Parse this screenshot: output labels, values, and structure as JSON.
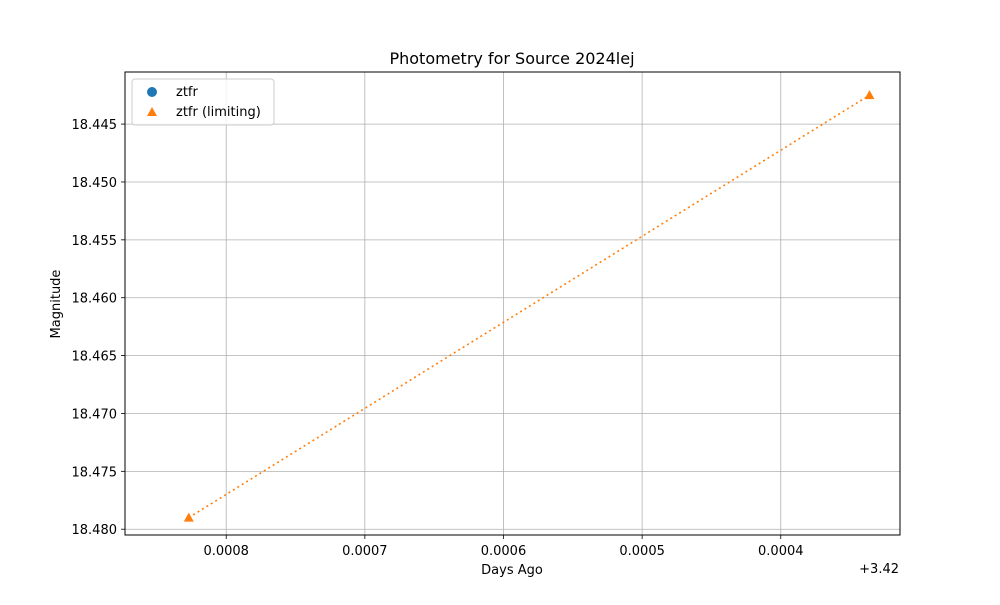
{
  "chart_data": {
    "type": "scatter",
    "title": "Photometry for Source 2024lej",
    "xlabel": "Days Ago",
    "ylabel": "Magnitude",
    "x_offset_label": "+3.42",
    "x_inverted": true,
    "y_inverted": true,
    "grid": true,
    "legend_position": "top-left",
    "xlim": [
      3.420873,
      3.420314
    ],
    "ylim": [
      18.4805,
      18.4405
    ],
    "x_ticks": [
      {
        "value": 3.4208,
        "label": "0.0008"
      },
      {
        "value": 3.4207,
        "label": "0.0007"
      },
      {
        "value": 3.4206,
        "label": "0.0006"
      },
      {
        "value": 3.4205,
        "label": "0.0005"
      },
      {
        "value": 3.4204,
        "label": "0.0004"
      }
    ],
    "y_ticks": [
      {
        "value": 18.445,
        "label": "18.445"
      },
      {
        "value": 18.45,
        "label": "18.450"
      },
      {
        "value": 18.455,
        "label": "18.455"
      },
      {
        "value": 18.46,
        "label": "18.460"
      },
      {
        "value": 18.465,
        "label": "18.465"
      },
      {
        "value": 18.47,
        "label": "18.470"
      },
      {
        "value": 18.475,
        "label": "18.475"
      },
      {
        "value": 18.48,
        "label": "18.480"
      }
    ],
    "series": [
      {
        "name": "ztfr",
        "marker": "circle",
        "color": "#1f77b4",
        "points": []
      },
      {
        "name": "ztfr (limiting)",
        "marker": "triangle",
        "color": "#ff7f0e",
        "line_style": "dotted",
        "points": [
          {
            "x": 3.420827,
            "y": 18.479
          },
          {
            "x": 3.420336,
            "y": 18.4425
          }
        ]
      }
    ]
  }
}
